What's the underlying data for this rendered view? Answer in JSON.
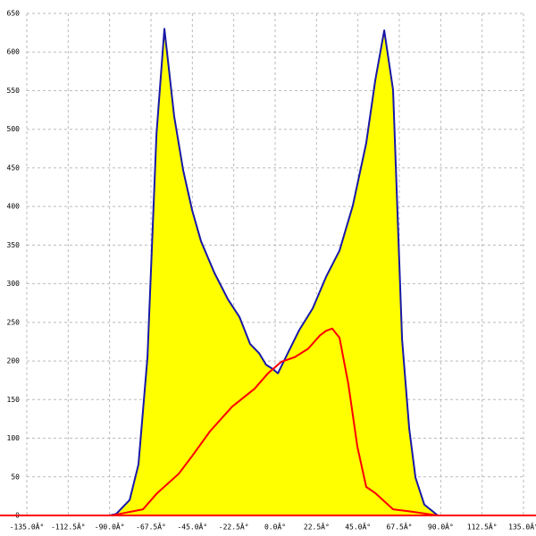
{
  "chart_data": {
    "type": "line",
    "xlim": [
      -135,
      135
    ],
    "xticks": [
      {
        "value": -135,
        "label": "-135.0Â°"
      },
      {
        "value": -112.5,
        "label": "-112.5Â°"
      },
      {
        "value": -90,
        "label": "-90.0Â°"
      },
      {
        "value": -67.5,
        "label": "-67.5Â°"
      },
      {
        "value": -45,
        "label": "-45.0Â°"
      },
      {
        "value": -22.5,
        "label": "-22.5Â°"
      },
      {
        "value": 0,
        "label": "0.0Â°"
      },
      {
        "value": 22.5,
        "label": "22.5Â°"
      },
      {
        "value": 45,
        "label": "45.0Â°"
      },
      {
        "value": 67.5,
        "label": "67.5Â°"
      },
      {
        "value": 90,
        "label": "90.0Â°"
      },
      {
        "value": 112.5,
        "label": "112.5Â°"
      },
      {
        "value": 135,
        "label": "135.0Â°"
      }
    ],
    "ylim": [
      0,
      650
    ],
    "yticks": [
      0,
      50,
      100,
      150,
      200,
      250,
      300,
      350,
      400,
      450,
      500,
      550,
      600,
      650
    ],
    "grid": true,
    "series": [
      {
        "color": "#1818a8",
        "fill": "#ffff00",
        "x": [
          -90,
          -86.4,
          -79.1,
          -74.3,
          -69.4,
          -64.5,
          -60.2,
          -54.9,
          -50,
          -45.1,
          -40.3,
          -33,
          -25.7,
          -19.4,
          -13.6,
          -8.7,
          -4.9,
          -1.5,
          1.5,
          5.8,
          13.1,
          20.4,
          27.7,
          35,
          42.2,
          49.5,
          54.4,
          59.3,
          64.1,
          69,
          72.9,
          76.3,
          81.1,
          88.4
        ],
        "values": [
          0,
          2,
          20,
          66,
          205,
          494,
          630,
          517,
          447,
          395,
          355,
          314,
          280,
          257,
          222,
          210,
          195,
          190,
          184,
          205,
          240,
          268,
          309,
          343,
          401,
          482,
          563,
          628,
          551,
          228,
          112,
          49,
          14,
          0
        ]
      },
      {
        "color": "#ff0000",
        "x": [
          -88.8,
          -71.8,
          -64.5,
          -52.4,
          -45.1,
          -35.4,
          -23.3,
          -11.2,
          -3.9,
          3.4,
          10.7,
          18,
          24.3,
          27.7,
          31,
          35,
          39.8,
          44.7,
          49.5,
          54.4,
          64.1,
          73.8,
          88.4
        ],
        "values": [
          0,
          8,
          28,
          54,
          77,
          109,
          141,
          164,
          184,
          199,
          205,
          216,
          233,
          239,
          242,
          230,
          170,
          89,
          37,
          29,
          8,
          5,
          0
        ]
      }
    ]
  }
}
